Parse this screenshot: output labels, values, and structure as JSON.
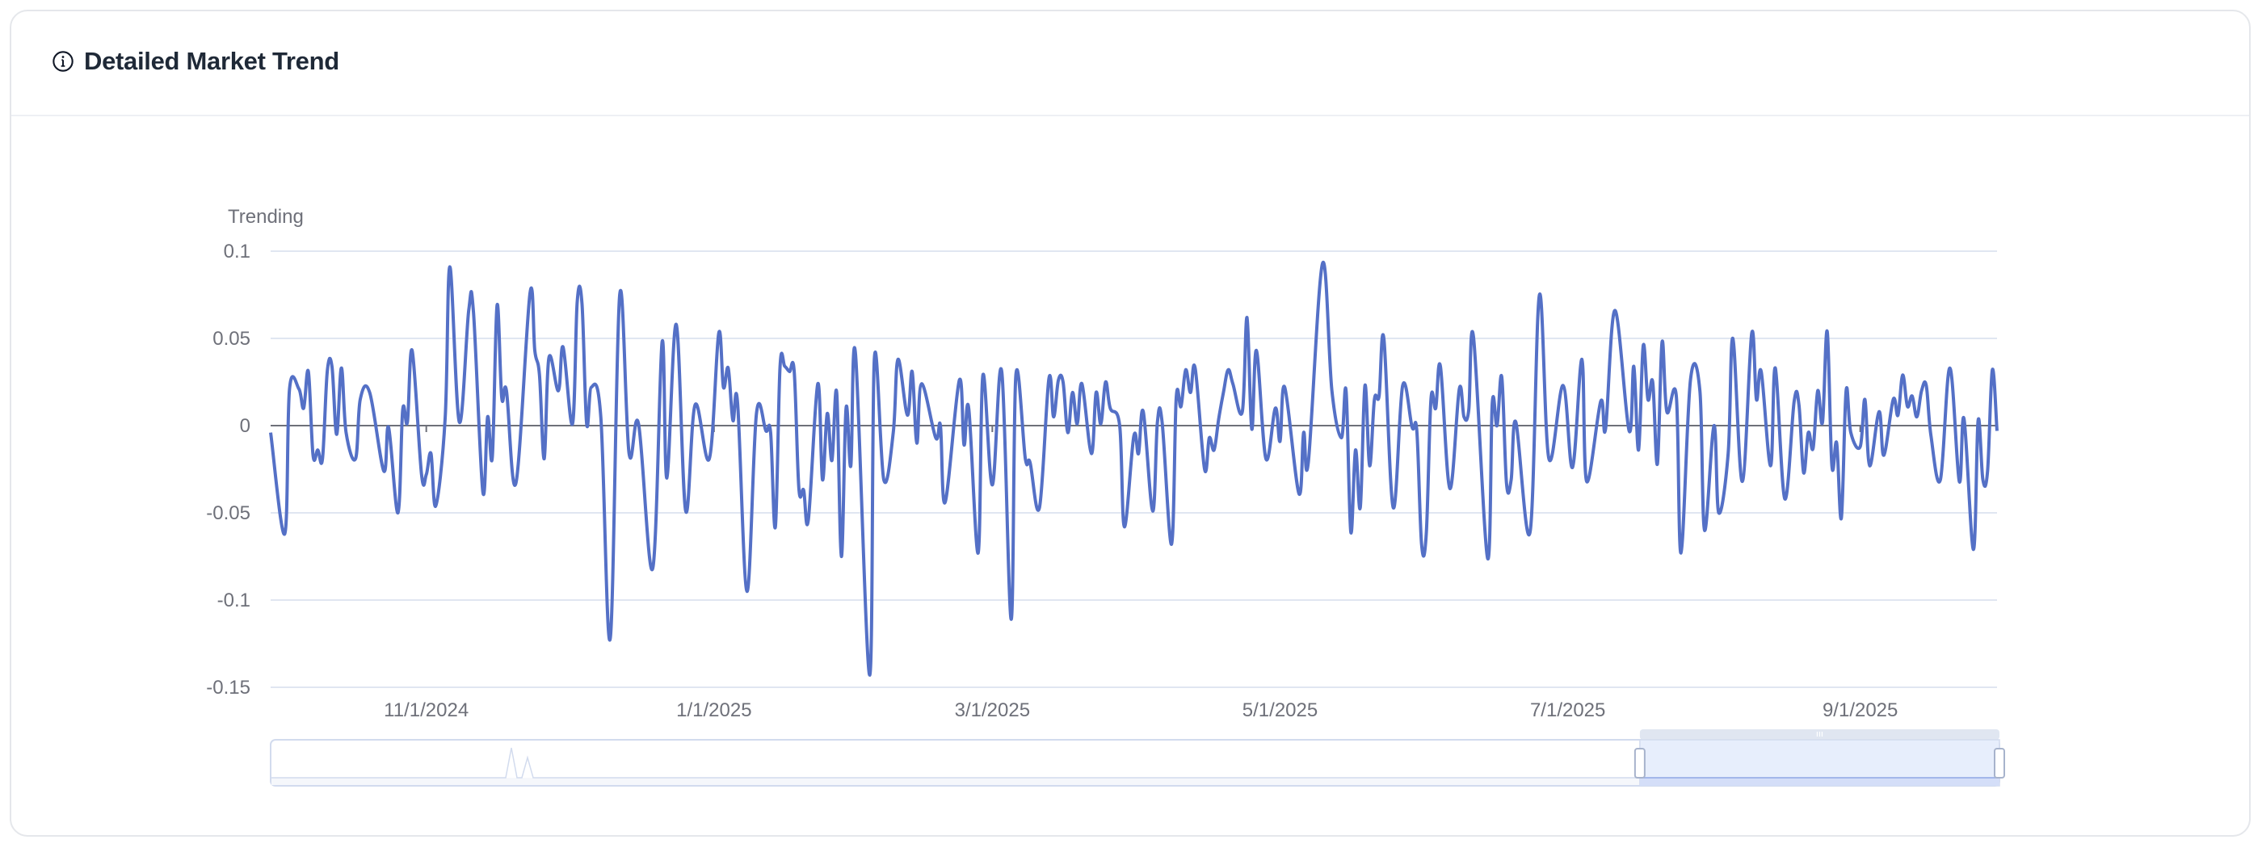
{
  "header": {
    "title": "Detailed Market Trend",
    "icon": "info-circle-icon"
  },
  "colors": {
    "line": "#5470c6",
    "grid": "#e0e6f1",
    "axis": "#6e7079",
    "slider_fill": "#e7eefc",
    "slider_border": "#d2dbee"
  },
  "chart_data": {
    "type": "line",
    "smooth": true,
    "title": "",
    "ylabel": "Trending",
    "xlabel": "",
    "ylim": [
      -0.15,
      0.1
    ],
    "yticks": [
      "0.1",
      "0.05",
      "0",
      "-0.05",
      "-0.1",
      "-0.15"
    ],
    "ytick_values": [
      0.1,
      0.05,
      0,
      -0.05,
      -0.1,
      -0.15
    ],
    "xlim": [
      "2024-09-29",
      "2025-09-30"
    ],
    "xticks": [
      "11/1/2024",
      "1/1/2025",
      "3/1/2025",
      "5/1/2025",
      "7/1/2025",
      "9/1/2025"
    ],
    "xtick_dates": [
      "2024-11-01",
      "2025-01-01",
      "2025-03-01",
      "2025-05-01",
      "2025-07-01",
      "2025-09-01"
    ],
    "grid": true,
    "legend": "none",
    "data_zoom": {
      "start_percent": 79.2,
      "end_percent": 100
    },
    "points": [
      [
        "2024-09-29",
        -0.004
      ],
      [
        "2024-10-02",
        -0.062
      ],
      [
        "2024-10-03",
        0.021
      ],
      [
        "2024-10-05",
        0.021
      ],
      [
        "2024-10-06",
        0.01
      ],
      [
        "2024-10-07",
        0.031
      ],
      [
        "2024-10-08",
        -0.017
      ],
      [
        "2024-10-09",
        -0.014
      ],
      [
        "2024-10-10",
        -0.019
      ],
      [
        "2024-10-11",
        0.031
      ],
      [
        "2024-10-12",
        0.034
      ],
      [
        "2024-10-13",
        -0.005
      ],
      [
        "2024-10-14",
        0.033
      ],
      [
        "2024-10-15",
        -0.004
      ],
      [
        "2024-10-17",
        -0.019
      ],
      [
        "2024-10-18",
        0.015
      ],
      [
        "2024-10-20",
        0.019
      ],
      [
        "2024-10-23",
        -0.026
      ],
      [
        "2024-10-24",
        -0.001
      ],
      [
        "2024-10-26",
        -0.05
      ],
      [
        "2024-10-27",
        0.009
      ],
      [
        "2024-10-28",
        0.002
      ],
      [
        "2024-10-29",
        0.043
      ],
      [
        "2024-10-31",
        -0.028
      ],
      [
        "2024-11-01",
        -0.028
      ],
      [
        "2024-11-02",
        -0.016
      ],
      [
        "2024-11-03",
        -0.046
      ],
      [
        "2024-11-05",
        0.004
      ],
      [
        "2024-11-06",
        0.091
      ],
      [
        "2024-11-08",
        0.002
      ],
      [
        "2024-11-10",
        0.066
      ],
      [
        "2024-11-11",
        0.065
      ],
      [
        "2024-11-13",
        -0.038
      ],
      [
        "2024-11-14",
        0.005
      ],
      [
        "2024-11-15",
        -0.018
      ],
      [
        "2024-11-16",
        0.069
      ],
      [
        "2024-11-17",
        0.016
      ],
      [
        "2024-11-18",
        0.02
      ],
      [
        "2024-11-20",
        -0.033
      ],
      [
        "2024-11-23",
        0.076
      ],
      [
        "2024-11-24",
        0.043
      ],
      [
        "2024-11-25",
        0.029
      ],
      [
        "2024-11-26",
        -0.019
      ],
      [
        "2024-11-27",
        0.039
      ],
      [
        "2024-11-29",
        0.02
      ],
      [
        "2024-11-30",
        0.045
      ],
      [
        "2024-12-02",
        0.001
      ],
      [
        "2024-12-03",
        0.071
      ],
      [
        "2024-12-04",
        0.07
      ],
      [
        "2024-12-05",
        0.001
      ],
      [
        "2024-12-06",
        0.022
      ],
      [
        "2024-12-08",
        0.005
      ],
      [
        "2024-12-10",
        -0.122
      ],
      [
        "2024-12-12",
        0.075
      ],
      [
        "2024-12-14",
        -0.016
      ],
      [
        "2024-12-16",
        0.001
      ],
      [
        "2024-12-19",
        -0.082
      ],
      [
        "2024-12-21",
        0.048
      ],
      [
        "2024-12-22",
        -0.03
      ],
      [
        "2024-12-24",
        0.058
      ],
      [
        "2024-12-26",
        -0.049
      ],
      [
        "2024-12-28",
        0.012
      ],
      [
        "2024-12-31",
        -0.019
      ],
      [
        "2025-01-02",
        0.053
      ],
      [
        "2025-01-03",
        0.022
      ],
      [
        "2025-01-04",
        0.033
      ],
      [
        "2025-01-05",
        0.003
      ],
      [
        "2025-01-06",
        0.013
      ],
      [
        "2025-01-08",
        -0.095
      ],
      [
        "2025-01-10",
        0.007
      ],
      [
        "2025-01-12",
        -0.003
      ],
      [
        "2025-01-13",
        -0.004
      ],
      [
        "2025-01-14",
        -0.058
      ],
      [
        "2025-01-15",
        0.034
      ],
      [
        "2025-01-16",
        0.034
      ],
      [
        "2025-01-17",
        0.031
      ],
      [
        "2025-01-18",
        0.031
      ],
      [
        "2025-01-19",
        -0.036
      ],
      [
        "2025-01-20",
        -0.037
      ],
      [
        "2025-01-21",
        -0.054
      ],
      [
        "2025-01-23",
        0.024
      ],
      [
        "2025-01-24",
        -0.031
      ],
      [
        "2025-01-25",
        0.007
      ],
      [
        "2025-01-26",
        -0.02
      ],
      [
        "2025-01-27",
        0.019
      ],
      [
        "2025-01-28",
        -0.075
      ],
      [
        "2025-01-29",
        0.01
      ],
      [
        "2025-01-30",
        -0.023
      ],
      [
        "2025-01-31",
        0.041
      ],
      [
        "2025-02-03",
        -0.143
      ],
      [
        "2025-02-04",
        0.039
      ],
      [
        "2025-02-06",
        -0.031
      ],
      [
        "2025-02-08",
        -0.004
      ],
      [
        "2025-02-09",
        0.038
      ],
      [
        "2025-02-11",
        0.006
      ],
      [
        "2025-02-12",
        0.031
      ],
      [
        "2025-02-13",
        -0.01
      ],
      [
        "2025-02-14",
        0.024
      ],
      [
        "2025-02-17",
        -0.007
      ],
      [
        "2025-02-18",
        0.0
      ],
      [
        "2025-02-19",
        -0.044
      ],
      [
        "2025-02-22",
        0.026
      ],
      [
        "2025-02-23",
        -0.011
      ],
      [
        "2025-02-24",
        0.01
      ],
      [
        "2025-02-26",
        -0.073
      ],
      [
        "2025-02-27",
        0.029
      ],
      [
        "2025-03-01",
        -0.034
      ],
      [
        "2025-03-03",
        0.031
      ],
      [
        "2025-03-05",
        -0.111
      ],
      [
        "2025-03-06",
        0.029
      ],
      [
        "2025-03-08",
        -0.019
      ],
      [
        "2025-03-09",
        -0.021
      ],
      [
        "2025-03-11",
        -0.047
      ],
      [
        "2025-03-13",
        0.027
      ],
      [
        "2025-03-14",
        0.005
      ],
      [
        "2025-03-15",
        0.026
      ],
      [
        "2025-03-16",
        0.025
      ],
      [
        "2025-03-17",
        -0.004
      ],
      [
        "2025-03-18",
        0.019
      ],
      [
        "2025-03-19",
        0.001
      ],
      [
        "2025-03-20",
        0.024
      ],
      [
        "2025-03-22",
        -0.016
      ],
      [
        "2025-03-23",
        0.019
      ],
      [
        "2025-03-24",
        0.001
      ],
      [
        "2025-03-25",
        0.025
      ],
      [
        "2025-03-26",
        0.01
      ],
      [
        "2025-03-28",
        0.0
      ],
      [
        "2025-03-29",
        -0.058
      ],
      [
        "2025-03-31",
        -0.006
      ],
      [
        "2025-04-01",
        -0.016
      ],
      [
        "2025-04-02",
        0.008
      ],
      [
        "2025-04-04",
        -0.049
      ],
      [
        "2025-04-05",
        0.002
      ],
      [
        "2025-04-06",
        0.002
      ],
      [
        "2025-04-08",
        -0.068
      ],
      [
        "2025-04-09",
        0.016
      ],
      [
        "2025-04-10",
        0.011
      ],
      [
        "2025-04-11",
        0.032
      ],
      [
        "2025-04-12",
        0.019
      ],
      [
        "2025-04-13",
        0.033
      ],
      [
        "2025-04-15",
        -0.025
      ],
      [
        "2025-04-16",
        -0.007
      ],
      [
        "2025-04-17",
        -0.014
      ],
      [
        "2025-04-18",
        0.004
      ],
      [
        "2025-04-19",
        0.019
      ],
      [
        "2025-04-20",
        0.032
      ],
      [
        "2025-04-21",
        0.024
      ],
      [
        "2025-04-23",
        0.008
      ],
      [
        "2025-04-24",
        0.062
      ],
      [
        "2025-04-25",
        -0.002
      ],
      [
        "2025-04-26",
        0.043
      ],
      [
        "2025-04-28",
        -0.019
      ],
      [
        "2025-04-30",
        0.01
      ],
      [
        "2025-05-01",
        -0.009
      ],
      [
        "2025-05-02",
        0.022
      ],
      [
        "2025-05-05",
        -0.039
      ],
      [
        "2025-05-06",
        -0.004
      ],
      [
        "2025-05-07",
        -0.021
      ],
      [
        "2025-05-10",
        0.093
      ],
      [
        "2025-05-12",
        0.02
      ],
      [
        "2025-05-14",
        -0.007
      ],
      [
        "2025-05-15",
        0.02
      ],
      [
        "2025-05-16",
        -0.061
      ],
      [
        "2025-05-17",
        -0.014
      ],
      [
        "2025-05-18",
        -0.047
      ],
      [
        "2025-05-19",
        0.023
      ],
      [
        "2025-05-20",
        -0.023
      ],
      [
        "2025-05-21",
        0.015
      ],
      [
        "2025-05-22",
        0.017
      ],
      [
        "2025-05-23",
        0.05
      ],
      [
        "2025-05-25",
        -0.047
      ],
      [
        "2025-05-27",
        0.023
      ],
      [
        "2025-05-29",
        -0.001
      ],
      [
        "2025-05-30",
        -0.003
      ],
      [
        "2025-05-31",
        -0.068
      ],
      [
        "2025-06-01",
        -0.062
      ],
      [
        "2025-06-02",
        0.015
      ],
      [
        "2025-06-03",
        0.01
      ],
      [
        "2025-06-04",
        0.034
      ],
      [
        "2025-06-06",
        -0.036
      ],
      [
        "2025-06-08",
        0.021
      ],
      [
        "2025-06-09",
        0.005
      ],
      [
        "2025-06-10",
        0.009
      ],
      [
        "2025-06-11",
        0.051
      ],
      [
        "2025-06-14",
        -0.076
      ],
      [
        "2025-06-15",
        0.013
      ],
      [
        "2025-06-16",
        0.0
      ],
      [
        "2025-06-17",
        0.028
      ],
      [
        "2025-06-18",
        -0.033
      ],
      [
        "2025-06-19",
        -0.031
      ],
      [
        "2025-06-20",
        0.002
      ],
      [
        "2025-06-23",
        -0.061
      ],
      [
        "2025-06-25",
        0.075
      ],
      [
        "2025-06-27",
        -0.019
      ],
      [
        "2025-06-30",
        0.023
      ],
      [
        "2025-07-02",
        -0.024
      ],
      [
        "2025-07-04",
        0.038
      ],
      [
        "2025-07-05",
        -0.032
      ],
      [
        "2025-07-08",
        0.014
      ],
      [
        "2025-07-09",
        -0.002
      ],
      [
        "2025-07-11",
        0.066
      ],
      [
        "2025-07-14",
        -0.003
      ],
      [
        "2025-07-15",
        0.034
      ],
      [
        "2025-07-16",
        -0.014
      ],
      [
        "2025-07-17",
        0.046
      ],
      [
        "2025-07-18",
        0.015
      ],
      [
        "2025-07-19",
        0.025
      ],
      [
        "2025-07-20",
        -0.022
      ],
      [
        "2025-07-21",
        0.048
      ],
      [
        "2025-07-22",
        0.008
      ],
      [
        "2025-07-24",
        0.017
      ],
      [
        "2025-07-25",
        -0.073
      ],
      [
        "2025-07-27",
        0.026
      ],
      [
        "2025-07-29",
        0.02
      ],
      [
        "2025-07-30",
        -0.06
      ],
      [
        "2025-08-01",
        0.0
      ],
      [
        "2025-08-02",
        -0.05
      ],
      [
        "2025-08-04",
        -0.016
      ],
      [
        "2025-08-05",
        0.05
      ],
      [
        "2025-08-07",
        -0.032
      ],
      [
        "2025-08-09",
        0.053
      ],
      [
        "2025-08-10",
        0.015
      ],
      [
        "2025-08-11",
        0.031
      ],
      [
        "2025-08-13",
        -0.023
      ],
      [
        "2025-08-14",
        0.033
      ],
      [
        "2025-08-16",
        -0.042
      ],
      [
        "2025-08-18",
        0.014
      ],
      [
        "2025-08-19",
        0.012
      ],
      [
        "2025-08-20",
        -0.027
      ],
      [
        "2025-08-21",
        -0.004
      ],
      [
        "2025-08-22",
        -0.013
      ],
      [
        "2025-08-23",
        0.02
      ],
      [
        "2025-08-24",
        0.002
      ],
      [
        "2025-08-25",
        0.054
      ],
      [
        "2025-08-26",
        -0.023
      ],
      [
        "2025-08-27",
        -0.01
      ],
      [
        "2025-08-28",
        -0.053
      ],
      [
        "2025-08-29",
        0.02
      ],
      [
        "2025-08-30",
        -0.004
      ],
      [
        "2025-09-01",
        -0.012
      ],
      [
        "2025-09-02",
        0.015
      ],
      [
        "2025-09-03",
        -0.023
      ],
      [
        "2025-09-05",
        0.008
      ],
      [
        "2025-09-06",
        -0.017
      ],
      [
        "2025-09-08",
        0.015
      ],
      [
        "2025-09-09",
        0.006
      ],
      [
        "2025-09-10",
        0.029
      ],
      [
        "2025-09-11",
        0.011
      ],
      [
        "2025-09-12",
        0.017
      ],
      [
        "2025-09-13",
        0.005
      ],
      [
        "2025-09-14",
        0.02
      ],
      [
        "2025-09-15",
        0.023
      ],
      [
        "2025-09-16",
        -0.006
      ],
      [
        "2025-09-18",
        -0.031
      ],
      [
        "2025-09-20",
        0.033
      ],
      [
        "2025-09-22",
        -0.032
      ],
      [
        "2025-09-23",
        0.004
      ],
      [
        "2025-09-25",
        -0.071
      ],
      [
        "2025-09-26",
        0.003
      ],
      [
        "2025-09-27",
        -0.031
      ],
      [
        "2025-09-28",
        -0.026
      ],
      [
        "2025-09-29",
        0.032
      ],
      [
        "2025-09-30",
        -0.003
      ]
    ]
  }
}
